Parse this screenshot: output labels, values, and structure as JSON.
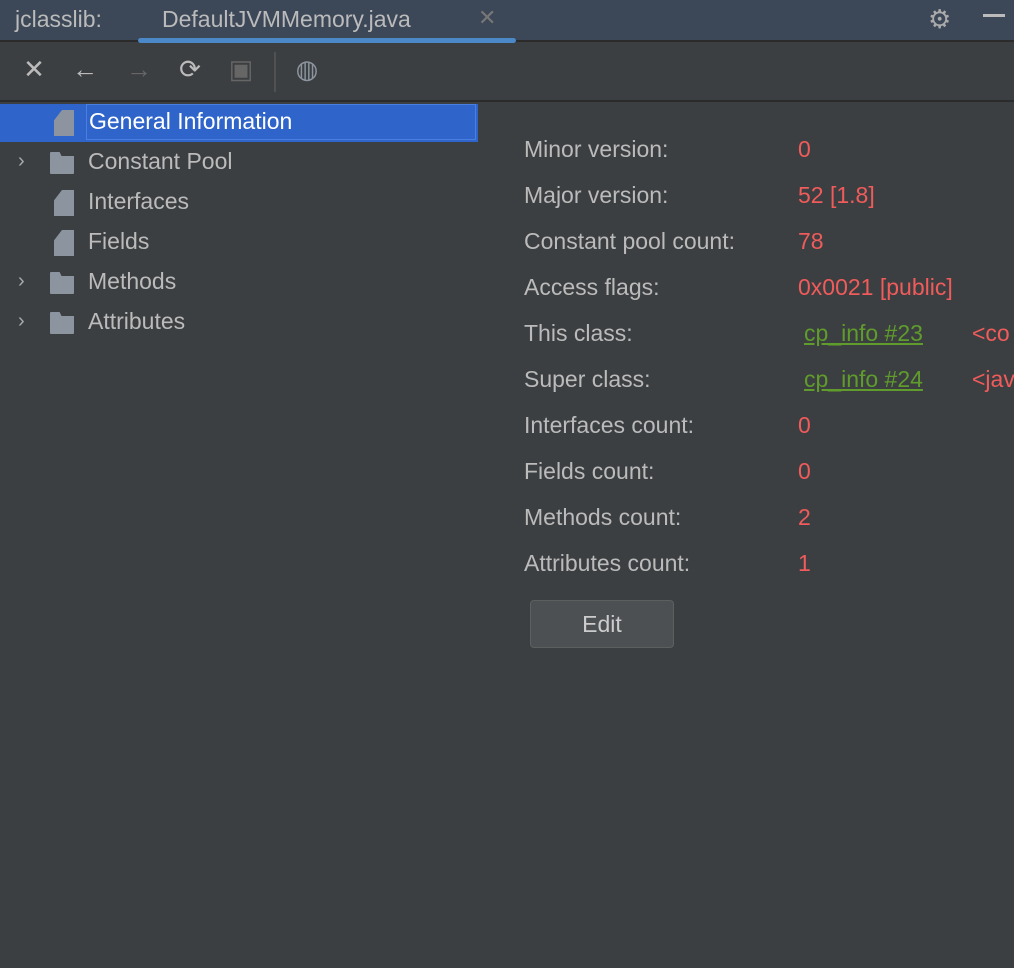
{
  "window": {
    "app_label": "jclasslib:",
    "tab_title": "DefaultJVMMemory.java"
  },
  "toolbar": {
    "close": "✕",
    "back": "←",
    "forward": "→",
    "refresh": "⟳",
    "save": "▣",
    "web": "◍"
  },
  "tree": [
    {
      "label": "General Information",
      "expandable": false,
      "type": "file",
      "selected": true
    },
    {
      "label": "Constant Pool",
      "expandable": true,
      "type": "folder"
    },
    {
      "label": "Interfaces",
      "expandable": false,
      "type": "file"
    },
    {
      "label": "Fields",
      "expandable": false,
      "type": "file"
    },
    {
      "label": "Methods",
      "expandable": true,
      "type": "folder"
    },
    {
      "label": "Attributes",
      "expandable": true,
      "type": "folder"
    }
  ],
  "info": [
    {
      "key": "Minor version:",
      "value": "0"
    },
    {
      "key": "Major version:",
      "value": "52 [1.8]"
    },
    {
      "key": "Constant pool count:",
      "value": "78"
    },
    {
      "key": "Access flags:",
      "value": "0x0021 [public]"
    },
    {
      "key": "This class:",
      "link": "cp_info #23",
      "extra": "<co"
    },
    {
      "key": "Super class:",
      "link": "cp_info #24",
      "extra": "<jav"
    },
    {
      "key": "Interfaces count:",
      "value": "0"
    },
    {
      "key": "Fields count:",
      "value": "0"
    },
    {
      "key": "Methods count:",
      "value": "2"
    },
    {
      "key": "Attributes count:",
      "value": "1"
    }
  ],
  "edit_label": "Edit",
  "colors": {
    "value": "#f05b5b",
    "link": "#5f9c2c",
    "selection": "#2f65ca"
  }
}
